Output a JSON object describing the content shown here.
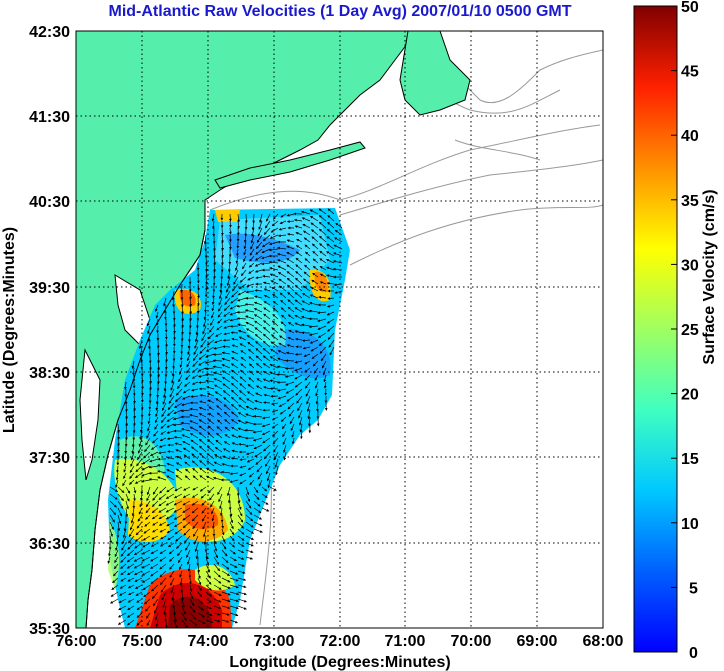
{
  "title": "Mid-Atlantic Raw Velocities (1 Day Avg) 2007/01/10 0500 GMT",
  "xlabel": "Longitude (Degrees:Minutes)",
  "ylabel": "Latitude (Degrees:Minutes)",
  "colorbar_label": "Surface Velocity (cm/s)",
  "x_ticks": [
    "76:00",
    "75:00",
    "74:00",
    "73:00",
    "72:00",
    "71:00",
    "70:00",
    "69:00",
    "68:00"
  ],
  "y_ticks": [
    "42:30",
    "41:30",
    "40:30",
    "39:30",
    "38:30",
    "37:30",
    "36:30",
    "35:30"
  ],
  "colorbar_ticks": [
    "50",
    "45",
    "40",
    "35",
    "30",
    "25",
    "20",
    "15",
    "10",
    "5",
    "0"
  ],
  "colors": {
    "land": "#55eeaa",
    "coast_outline": "#000000",
    "bathymetry": "#999999",
    "title": "#1a1acc",
    "background": "#ffffff"
  },
  "chart_data": {
    "type": "heatmap",
    "xlim": [
      -76.0,
      -68.0
    ],
    "ylim": [
      35.5,
      42.5
    ],
    "grid": true,
    "colormap": "jet",
    "clim": [
      0,
      50
    ],
    "colorbar_position": "right"
  }
}
